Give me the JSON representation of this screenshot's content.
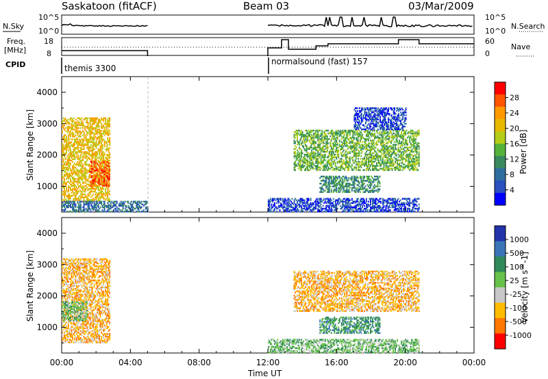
{
  "header": {
    "site": "Saskatoon (fitACF)",
    "beam": "Beam 03",
    "date": "03/Mar/2009"
  },
  "status_panels": {
    "nsky_label": "N.Sky",
    "nsky_ticks": [
      "10^5",
      "10^0"
    ],
    "nsearch_label": "N.Search",
    "nsearch_ticks": [
      "10^5",
      "10^0"
    ],
    "freq_label_1": "Freq.",
    "freq_label_2": "[MHz]",
    "freq_ticks": [
      "18",
      "8"
    ],
    "nave_label": "Nave",
    "nave_ticks": [
      "60",
      "0"
    ],
    "cpid_label": "CPID",
    "cpid_segments": [
      {
        "text": "themis 3300",
        "start_hour": 0.0,
        "end_hour": 5.0
      },
      {
        "text": "normalsound (fast) 157",
        "start_hour": 12.0,
        "end_hour": 24.0
      }
    ]
  },
  "axes": {
    "x_ticks": [
      "00:00",
      "04:00",
      "08:00",
      "12:00",
      "16:00",
      "20:00",
      "00:00"
    ],
    "xlabel": "Time UT",
    "ylabel": "Slant Range [km]",
    "y_ticks": [
      "4000",
      "3000",
      "2000",
      "1000"
    ]
  },
  "colorbars": {
    "power_label": "Power [dB]",
    "power_ticks": [
      "28",
      "24",
      "20",
      "16",
      "12",
      "8",
      "4"
    ],
    "power_colors": [
      "#ff0000",
      "#ff5500",
      "#ff9900",
      "#e6b800",
      "#b5cc18",
      "#55b33a",
      "#3a8a60",
      "#2d6e9e",
      "#2a4fbf",
      "#0000ff"
    ],
    "velocity_label": "Velocity [m s^-1]",
    "velocity_ticks": [
      "1000",
      "500",
      "100",
      "25",
      "-25",
      "-100",
      "-500",
      "-1000"
    ],
    "velocity_colors": [
      "#2233aa",
      "#3a75b8",
      "#2f8a5a",
      "#66c24a",
      "#c8c8c8",
      "#ffbb00",
      "#ff7700",
      "#ff0000"
    ]
  },
  "chart_data": [
    {
      "type": "heatmap",
      "title": "Power",
      "xlabel": "Time UT",
      "ylabel": "Slant Range [km]",
      "xlim_hours": [
        0,
        24
      ],
      "ylim_km": [
        180,
        4500
      ],
      "colorbar": "Power [dB]",
      "scatter_regions": [
        {
          "t_start": 0.0,
          "t_end": 2.8,
          "r_min": 500,
          "r_max": 3200,
          "dominant_db": 20
        },
        {
          "t_start": 1.6,
          "t_end": 2.8,
          "r_min": 1000,
          "r_max": 1800,
          "dominant_db": 28
        },
        {
          "t_start": 0.0,
          "t_end": 5.0,
          "r_min": 180,
          "r_max": 500,
          "dominant_db": 8
        },
        {
          "t_start": 12.0,
          "t_end": 20.8,
          "r_min": 180,
          "r_max": 600,
          "dominant_db": 6
        },
        {
          "t_start": 13.5,
          "t_end": 20.8,
          "r_min": 1500,
          "r_max": 2800,
          "dominant_db": 16
        },
        {
          "t_start": 15.0,
          "t_end": 18.5,
          "r_min": 800,
          "r_max": 1300,
          "dominant_db": 12
        },
        {
          "t_start": 17.0,
          "t_end": 20.0,
          "r_min": 2800,
          "r_max": 3500,
          "dominant_db": 6
        }
      ]
    },
    {
      "type": "heatmap",
      "title": "Velocity",
      "xlabel": "Time UT",
      "ylabel": "Slant Range [km]",
      "xlim_hours": [
        0,
        24
      ],
      "ylim_km": [
        180,
        4500
      ],
      "colorbar": "Velocity [m s^-1]",
      "scatter_regions": [
        {
          "t_start": 0.0,
          "t_end": 2.8,
          "r_min": 500,
          "r_max": 3200,
          "dominant_ms": -100
        },
        {
          "t_start": 0.0,
          "t_end": 1.5,
          "r_min": 1200,
          "r_max": 1800,
          "dominant_ms": 0
        },
        {
          "t_start": 12.0,
          "t_end": 20.8,
          "r_min": 180,
          "r_max": 600,
          "dominant_ms": 0
        },
        {
          "t_start": 13.5,
          "t_end": 20.8,
          "r_min": 1500,
          "r_max": 2800,
          "dominant_ms": -100
        },
        {
          "t_start": 15.0,
          "t_end": 18.5,
          "r_min": 800,
          "r_max": 1300,
          "dominant_ms": 100
        }
      ]
    }
  ]
}
